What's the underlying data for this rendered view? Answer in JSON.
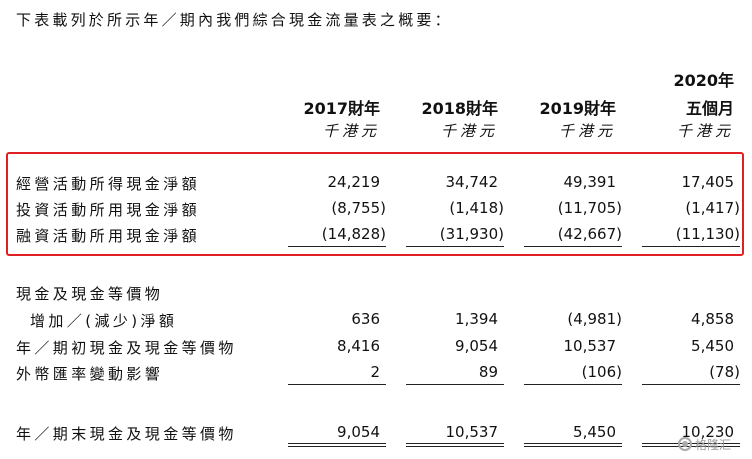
{
  "intro": "下表載列於所示年／期內我們綜合現金流量表之概要：",
  "columns": [
    {
      "year": "2017財年",
      "unit": "千港元"
    },
    {
      "year": "2018財年",
      "unit": "千港元"
    },
    {
      "year": "2019財年",
      "unit": "千港元"
    },
    {
      "year_line1": "2020年",
      "year": "五個月",
      "unit": "千港元"
    }
  ],
  "rows": [
    {
      "label": "經營活動所得現金淨額",
      "values": [
        "24,219",
        "34,742",
        "49,391",
        "17,405"
      ]
    },
    {
      "label": "投資活動所用現金淨額",
      "values": [
        "(8,755)",
        "(1,418)",
        "(11,705)",
        "(1,417)"
      ]
    },
    {
      "label": "融資活動所用現金淨額",
      "values": [
        "(14,828)",
        "(31,930)",
        "(42,667)",
        "(11,130)"
      ]
    },
    {
      "label": "現金及現金等價物",
      "values": []
    },
    {
      "label": "增加／(減少)淨額",
      "values": [
        "636",
        "1,394",
        "(4,981)",
        "4,858"
      ]
    },
    {
      "label": "年／期初現金及現金等價物",
      "values": [
        "8,416",
        "9,054",
        "10,537",
        "5,450"
      ]
    },
    {
      "label": "外幣匯率變動影響",
      "values": [
        "2",
        "89",
        "(106)",
        "(78)"
      ]
    },
    {
      "label": "年／期末現金及現金等價物",
      "values": [
        "9,054",
        "10,537",
        "5,450",
        "10,230"
      ]
    }
  ],
  "highlight_color": "#e02020",
  "watermark": {
    "text": "格隆汇",
    "icon": "gelonghui-logo-icon"
  }
}
